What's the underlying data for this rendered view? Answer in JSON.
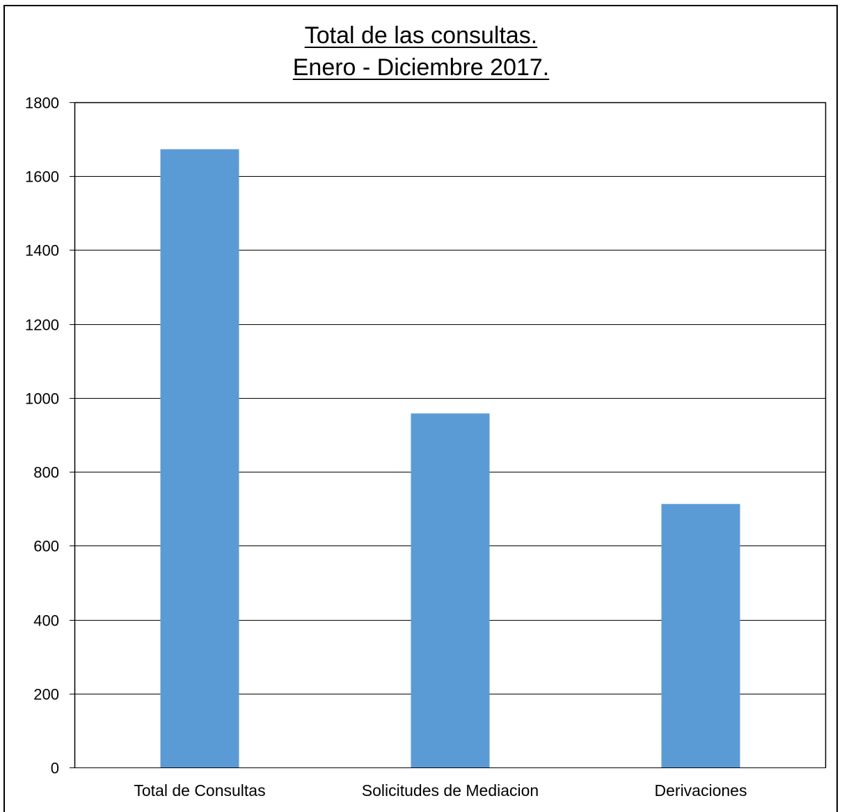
{
  "chart_data": {
    "type": "bar",
    "title": "Total de las consultas.",
    "subtitle": "Enero - Diciembre 2017.",
    "xlabel": "",
    "ylabel": "",
    "categories": [
      "Total de Consultas",
      "Solicitudes de Mediacion",
      "Derivaciones"
    ],
    "values": [
      1673,
      958,
      713
    ],
    "ylim": [
      0,
      1800
    ],
    "yticks": [
      0,
      200,
      400,
      600,
      800,
      1000,
      1200,
      1400,
      1600,
      1800
    ],
    "grid": true,
    "legend": "none",
    "colors": {
      "bar": "#5b9bd5",
      "grid": "#000000",
      "axis": "#000000"
    }
  }
}
